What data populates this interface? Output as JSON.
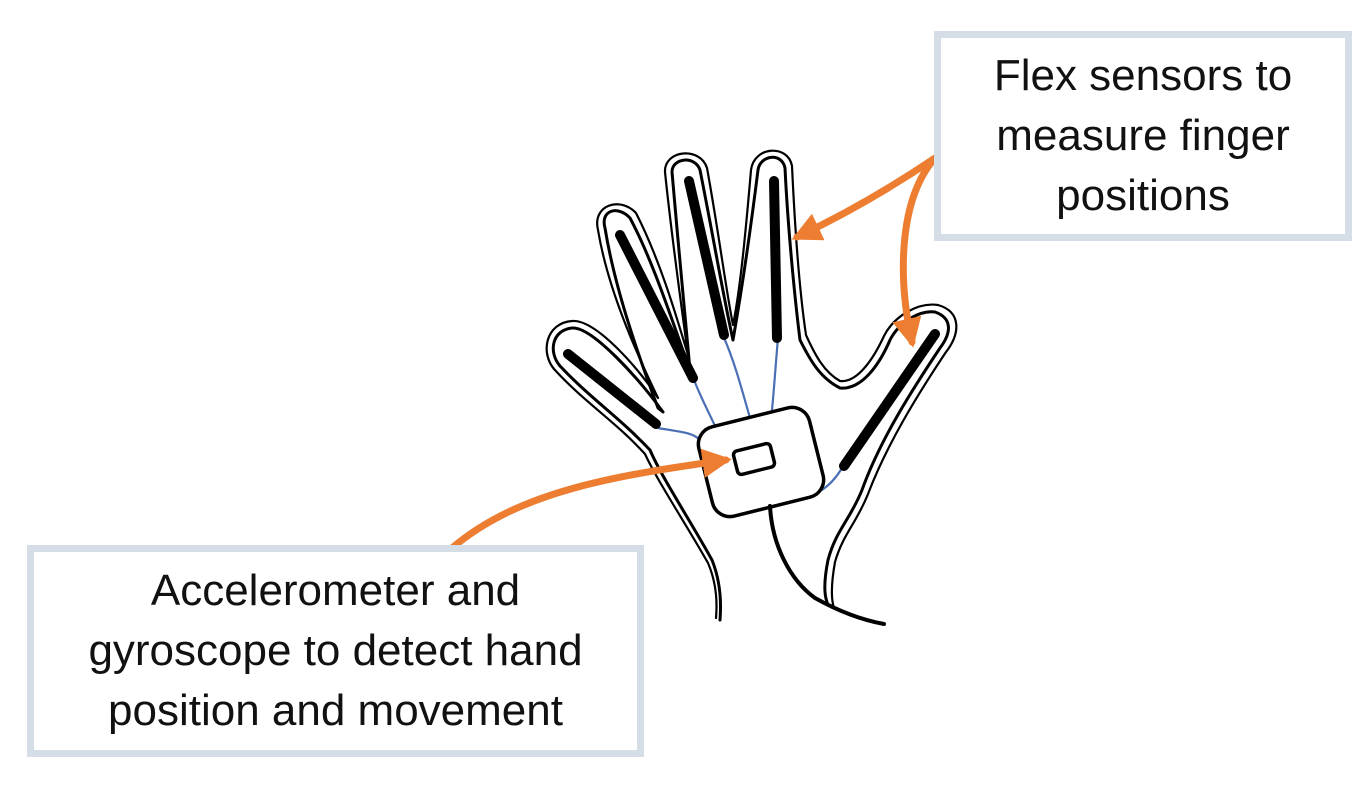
{
  "callouts": {
    "flex_sensors": {
      "lines": [
        "Flex sensors to",
        "measure finger",
        "positions"
      ]
    },
    "accelerometer": {
      "lines": [
        "Accelerometer and",
        "gyroscope to detect hand",
        "position and movement"
      ]
    }
  },
  "colors": {
    "arrow": "#ed7d31",
    "sensor_wire": "#4a6fb5",
    "outline": "#000000",
    "callout_border": "#d5dde6"
  },
  "icons": {
    "hand": "hand-outline-icon",
    "flex_sensor": "flex-sensor-icon",
    "imu_module": "imu-module-icon",
    "cable": "cable-icon"
  }
}
